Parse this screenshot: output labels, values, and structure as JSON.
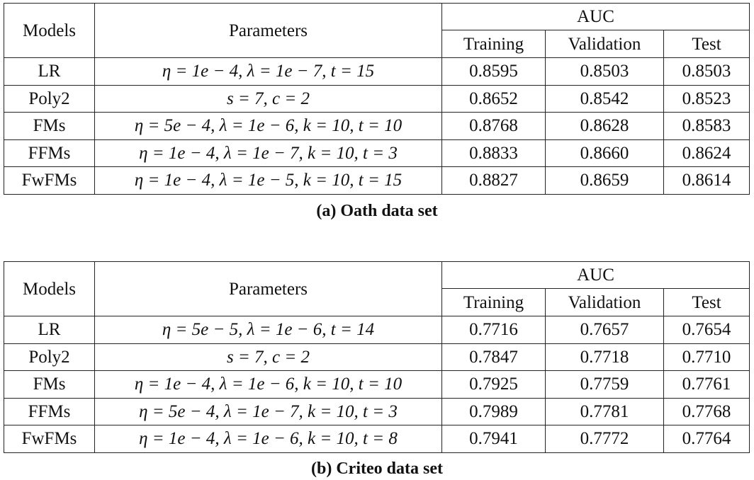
{
  "tables": [
    {
      "headers": {
        "models": "Models",
        "parameters": "Parameters",
        "auc": "AUC",
        "training": "Training",
        "validation": "Validation",
        "test": "Test"
      },
      "rows": [
        {
          "model": "LR",
          "params": "η = 1e − 4, λ = 1e − 7, t = 15",
          "training": "0.8595",
          "validation": "0.8503",
          "test": "0.8503"
        },
        {
          "model": "Poly2",
          "params": "s = 7, c = 2",
          "training": "0.8652",
          "validation": "0.8542",
          "test": "0.8523"
        },
        {
          "model": "FMs",
          "params": "η = 5e − 4, λ = 1e − 6, k = 10, t = 10",
          "training": "0.8768",
          "validation": "0.8628",
          "test": "0.8583"
        },
        {
          "model": "FFMs",
          "params": "η = 1e − 4, λ = 1e − 7, k = 10, t = 3",
          "training": "0.8833",
          "validation": "0.8660",
          "test": "0.8624"
        },
        {
          "model": "FwFMs",
          "params": "η = 1e − 4, λ = 1e − 5, k = 10, t = 15",
          "training": "0.8827",
          "validation": "0.8659",
          "test": "0.8614"
        }
      ],
      "caption": "(a) Oath data set"
    },
    {
      "headers": {
        "models": "Models",
        "parameters": "Parameters",
        "auc": "AUC",
        "training": "Training",
        "validation": "Validation",
        "test": "Test"
      },
      "rows": [
        {
          "model": "LR",
          "params": "η = 5e − 5, λ = 1e − 6, t = 14",
          "training": "0.7716",
          "validation": "0.7657",
          "test": "0.7654"
        },
        {
          "model": "Poly2",
          "params": "s = 7, c = 2",
          "training": "0.7847",
          "validation": "0.7718",
          "test": "0.7710"
        },
        {
          "model": "FMs",
          "params": "η = 1e − 4, λ = 1e − 6, k = 10, t = 10",
          "training": "0.7925",
          "validation": "0.7759",
          "test": "0.7761"
        },
        {
          "model": "FFMs",
          "params": "η = 5e − 4, λ = 1e − 7, k = 10, t = 3",
          "training": "0.7989",
          "validation": "0.7781",
          "test": "0.7768"
        },
        {
          "model": "FwFMs",
          "params": "η = 1e − 4, λ = 1e − 6, k = 10, t = 8",
          "training": "0.7941",
          "validation": "0.7772",
          "test": "0.7764"
        }
      ],
      "caption": "(b) Criteo data set"
    }
  ]
}
